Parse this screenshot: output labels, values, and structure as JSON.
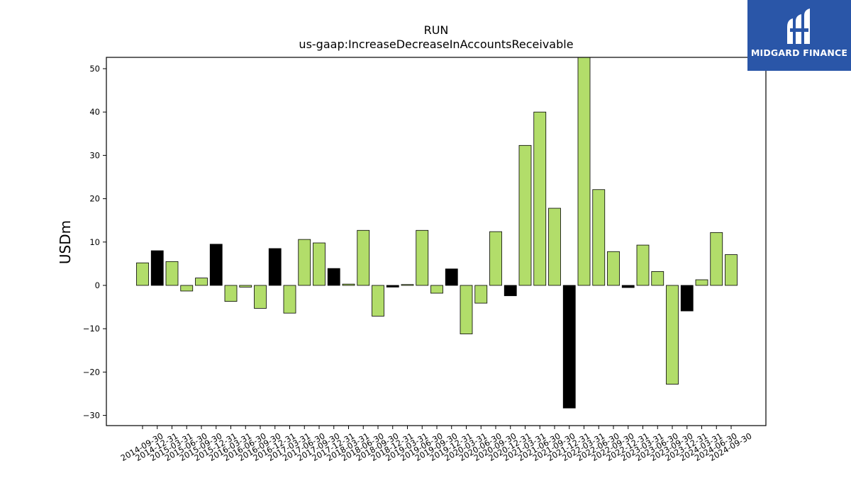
{
  "logo": {
    "text": "MIDGARD FINANCE",
    "color": "#2a56a8"
  },
  "chart_data": {
    "type": "bar",
    "title": "RUN",
    "subtitle": "us-gaap:IncreaseDecreaseInAccountsReceivable",
    "ylabel": "USDm",
    "xlabel": "",
    "ylim": [
      -32.5,
      52.5
    ],
    "yticks": [
      -30,
      -20,
      -10,
      0,
      10,
      20,
      30,
      40,
      50
    ],
    "ytick_labels": [
      "−30",
      "−20",
      "−10",
      "0",
      "10",
      "20",
      "30",
      "40",
      "50"
    ],
    "grid": false,
    "categories": [
      "2014-09-30",
      "2014-12-31",
      "2015-03-31",
      "2015-06-30",
      "2015-09-30",
      "2015-12-31",
      "2016-03-31",
      "2016-06-30",
      "2016-09-30",
      "2016-12-31",
      "2017-03-31",
      "2017-06-30",
      "2017-09-30",
      "2017-12-31",
      "2018-03-31",
      "2018-06-30",
      "2018-09-30",
      "2018-12-31",
      "2019-03-31",
      "2019-06-30",
      "2019-09-30",
      "2019-12-31",
      "2020-03-31",
      "2020-06-30",
      "2020-09-30",
      "2020-12-31",
      "2021-03-31",
      "2021-06-30",
      "2021-09-30",
      "2021-12-31",
      "2022-03-31",
      "2022-06-30",
      "2022-09-30",
      "2022-12-31",
      "2023-03-31",
      "2023-06-30",
      "2023-09-30",
      "2023-12-31",
      "2024-03-31",
      "2024-06-30",
      "2024-09-30"
    ],
    "values": [
      5.2,
      8.0,
      5.5,
      -1.3,
      1.7,
      9.5,
      -3.7,
      -0.4,
      -5.3,
      8.5,
      -6.4,
      10.6,
      9.8,
      3.9,
      0.3,
      12.7,
      -7.1,
      -0.4,
      0.2,
      12.7,
      -1.8,
      3.8,
      -11.2,
      -4.1,
      12.4,
      -2.4,
      32.3,
      40.0,
      17.8,
      -28.3,
      53.0,
      22.1,
      7.8,
      -0.5,
      9.3,
      3.2,
      -22.8,
      -5.9,
      1.3,
      12.2,
      7.1
    ],
    "bar_kind": [
      "annual_q",
      "q4",
      "annual_q",
      "annual_q",
      "annual_q",
      "q4",
      "annual_q",
      "annual_q",
      "annual_q",
      "q4",
      "annual_q",
      "annual_q",
      "annual_q",
      "q4",
      "annual_q",
      "annual_q",
      "annual_q",
      "q4",
      "annual_q",
      "annual_q",
      "annual_q",
      "q4",
      "annual_q",
      "annual_q",
      "annual_q",
      "q4",
      "annual_q",
      "annual_q",
      "annual_q",
      "q4",
      "annual_q",
      "annual_q",
      "annual_q",
      "q4",
      "annual_q",
      "annual_q",
      "annual_q",
      "q4",
      "annual_q",
      "annual_q",
      "annual_q"
    ],
    "colors": {
      "quarter": "#b2dd6a",
      "q4": "#000000",
      "edge": "#000000"
    }
  }
}
